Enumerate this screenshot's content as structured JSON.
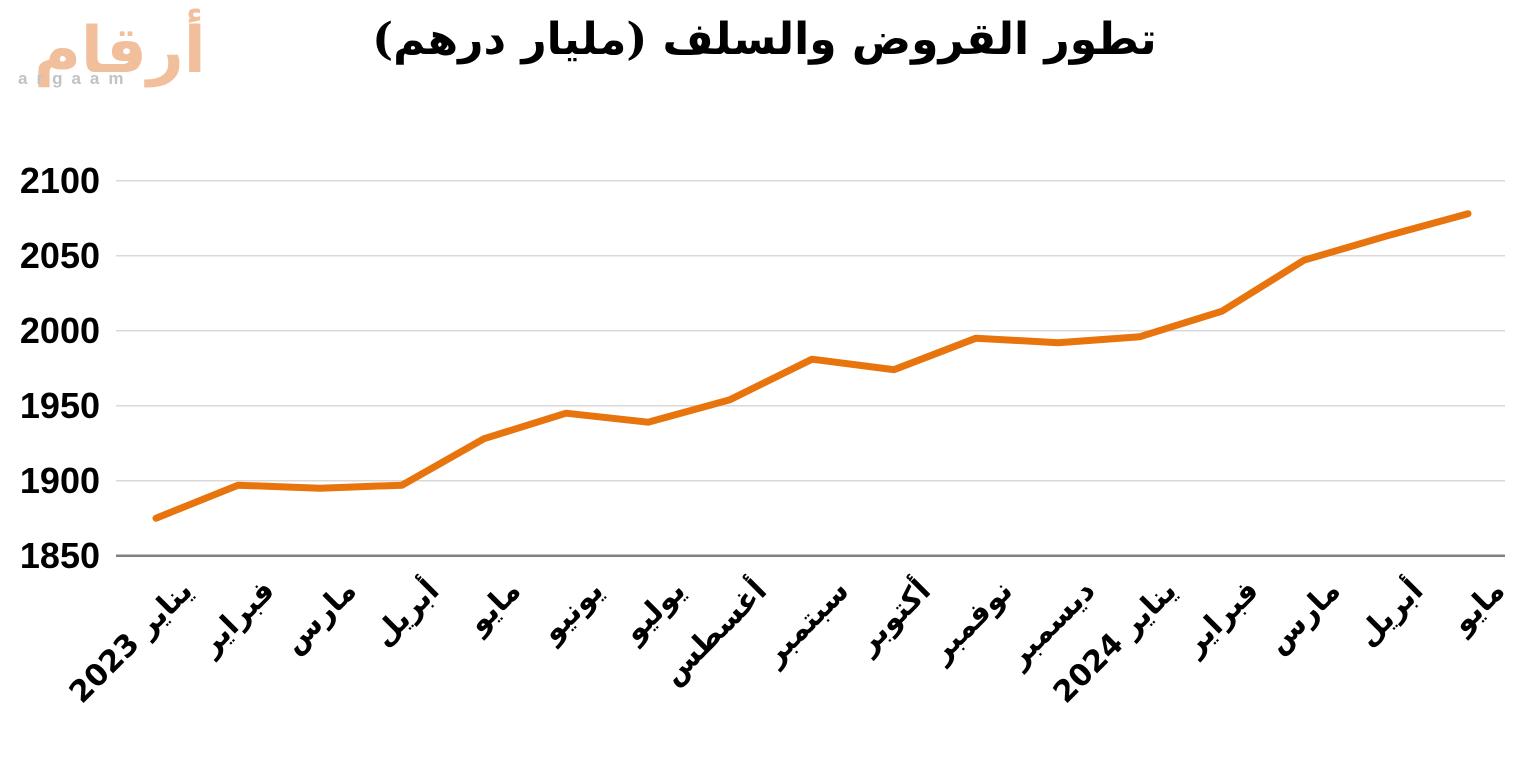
{
  "logo": {
    "arabic_text": "أرقام",
    "latin_text": "argaam",
    "arabic_color": "#F2BF9C",
    "latin_color": "#C2C2C2"
  },
  "chart_data": {
    "type": "line",
    "title": "تطور القروض والسلف (مليار درهم)",
    "categories": [
      "يناير 2023",
      "فبراير",
      "مارس",
      "أبريل",
      "مايو",
      "يونيو",
      "يوليو",
      "أغسطس",
      "سبتمبر",
      "أكتوبر",
      "نوفمبر",
      "ديسمبر",
      "يناير 2024",
      "فبراير",
      "مارس",
      "أبريل",
      "مايو"
    ],
    "values": [
      1875,
      1897,
      1895,
      1897,
      1928,
      1945,
      1939,
      1954,
      1981,
      1974,
      1995,
      1992,
      1996,
      2013,
      2047,
      2063,
      2078
    ],
    "ylim": [
      1850,
      2100
    ],
    "ytick_step": 50,
    "yticks": [
      1850,
      1900,
      1950,
      2000,
      2050,
      2100
    ],
    "xlabel": "",
    "ylabel": "",
    "grid": true,
    "legend_position": "none",
    "line_color": "#E8740E",
    "gridline_color": "#D9D9D9",
    "axis_color": "#808080"
  }
}
